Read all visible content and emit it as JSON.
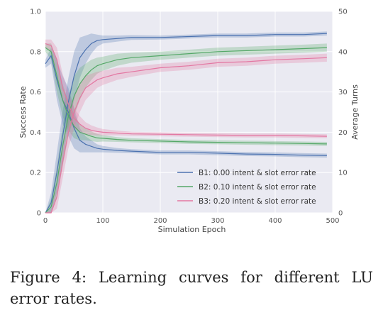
{
  "caption": "Figure 4: Learning curves for different LU error rates.",
  "chart_data": {
    "type": "line",
    "xlabel": "Simulation Epoch",
    "ylabel_left": "Success Rate",
    "ylabel_right": "Average Turns",
    "xlim": [
      0,
      500
    ],
    "ylim_left": [
      0,
      1.0
    ],
    "ylim_right": [
      0,
      50
    ],
    "xticks": [
      0,
      100,
      200,
      300,
      400,
      500
    ],
    "yticks_left": [
      0,
      0.2,
      0.4,
      0.6,
      0.8,
      1.0
    ],
    "ytick_labels_left": [
      "0",
      "0.2",
      "0.4",
      "0.6",
      "0.8",
      "1.0"
    ],
    "yticks_right": [
      0,
      10,
      20,
      30,
      40,
      50
    ],
    "grid": true,
    "legend_position": "lower-right",
    "x": [
      0,
      10,
      20,
      30,
      40,
      50,
      60,
      70,
      80,
      90,
      100,
      125,
      150,
      200,
      250,
      300,
      350,
      400,
      450,
      490
    ],
    "series": [
      {
        "name": "B1: 0.00 intent & slot error rate",
        "color": "#4c72b0",
        "success_rate": [
          0.0,
          0.05,
          0.2,
          0.38,
          0.55,
          0.68,
          0.77,
          0.81,
          0.84,
          0.855,
          0.86,
          0.865,
          0.87,
          0.87,
          0.875,
          0.88,
          0.88,
          0.885,
          0.885,
          0.89
        ],
        "success_band": [
          0.0,
          0.05,
          0.1,
          0.12,
          0.12,
          0.12,
          0.1,
          0.07,
          0.05,
          0.03,
          0.02,
          0.015,
          0.012,
          0.01,
          0.01,
          0.01,
          0.01,
          0.01,
          0.01,
          0.01
        ],
        "average_turns": [
          37,
          39,
          33,
          28,
          25,
          21,
          18,
          17,
          16.5,
          16,
          15.8,
          15.5,
          15.3,
          15,
          15,
          14.8,
          14.6,
          14.5,
          14.3,
          14.2
        ],
        "turns_band": [
          1,
          2,
          5,
          6,
          6,
          5,
          3,
          2,
          1.5,
          1,
          0.8,
          0.6,
          0.5,
          0.5,
          0.5,
          0.5,
          0.5,
          0.5,
          0.5,
          0.5
        ]
      },
      {
        "name": "B2: 0.10 intent & slot error rate",
        "color": "#55a868",
        "success_rate": [
          0.0,
          0.03,
          0.15,
          0.33,
          0.48,
          0.58,
          0.64,
          0.68,
          0.71,
          0.73,
          0.74,
          0.76,
          0.77,
          0.78,
          0.79,
          0.8,
          0.805,
          0.81,
          0.815,
          0.82
        ],
        "success_band": [
          0.0,
          0.04,
          0.08,
          0.1,
          0.1,
          0.1,
          0.08,
          0.06,
          0.05,
          0.04,
          0.035,
          0.03,
          0.025,
          0.02,
          0.02,
          0.02,
          0.02,
          0.02,
          0.02,
          0.02
        ],
        "average_turns": [
          41,
          40,
          34,
          28,
          24,
          21.5,
          20,
          19.5,
          19,
          18.6,
          18.5,
          18.2,
          18,
          17.8,
          17.6,
          17.5,
          17.4,
          17.3,
          17.2,
          17.1
        ],
        "turns_band": [
          1,
          2,
          4,
          4,
          3.5,
          3,
          2,
          1.5,
          1.2,
          1,
          0.8,
          0.6,
          0.5,
          0.5,
          0.5,
          0.5,
          0.5,
          0.5,
          0.5,
          0.5
        ]
      },
      {
        "name": "B3: 0.20 intent & slot error rate",
        "color": "#e377a2",
        "success_rate": [
          0.0,
          0.0,
          0.08,
          0.25,
          0.4,
          0.5,
          0.57,
          0.62,
          0.64,
          0.66,
          0.67,
          0.69,
          0.7,
          0.72,
          0.73,
          0.745,
          0.75,
          0.76,
          0.765,
          0.77
        ],
        "success_band": [
          0.0,
          0.02,
          0.06,
          0.08,
          0.08,
          0.08,
          0.07,
          0.06,
          0.05,
          0.04,
          0.035,
          0.03,
          0.025,
          0.02,
          0.02,
          0.02,
          0.02,
          0.02,
          0.02,
          0.02
        ],
        "average_turns": [
          42,
          41.5,
          38,
          31,
          27,
          23.5,
          22,
          21,
          20.5,
          20.2,
          20,
          19.8,
          19.6,
          19.5,
          19.4,
          19.3,
          19.2,
          19.2,
          19.1,
          19
        ],
        "turns_band": [
          1,
          1.5,
          3,
          3.5,
          3,
          2.5,
          2,
          1.5,
          1.2,
          1,
          0.8,
          0.6,
          0.5,
          0.5,
          0.5,
          0.5,
          0.5,
          0.5,
          0.5,
          0.5
        ]
      }
    ]
  }
}
